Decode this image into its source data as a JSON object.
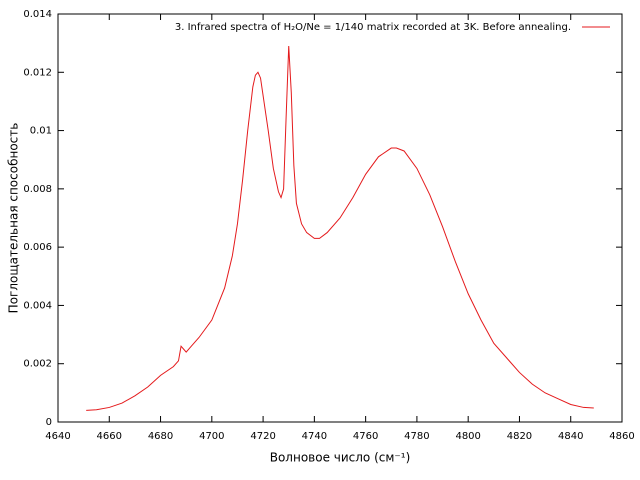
{
  "chart_data": {
    "type": "line",
    "xlabel": "Волновое число (см⁻¹)",
    "ylabel": "Поглощательная способность",
    "x": [
      4651,
      4655,
      4660,
      4665,
      4670,
      4675,
      4680,
      4685,
      4687,
      4688,
      4689,
      4690,
      4692,
      4695,
      4700,
      4705,
      4708,
      4710,
      4712,
      4714,
      4716,
      4717,
      4718,
      4719,
      4720,
      4722,
      4724,
      4726,
      4727,
      4728,
      4729,
      4730,
      4731,
      4732,
      4733,
      4735,
      4737,
      4740,
      4742,
      4745,
      4750,
      4755,
      4760,
      4765,
      4770,
      4772,
      4775,
      4780,
      4785,
      4790,
      4795,
      4800,
      4805,
      4810,
      4815,
      4820,
      4825,
      4830,
      4835,
      4840,
      4845,
      4849
    ],
    "series": [
      {
        "name": "3. Infrared spectra of H₂O/Ne = 1/140 matrix recorded at 3K. Before annealing.",
        "color": "#e41a1c",
        "values": [
          0.0004,
          0.00042,
          0.0005,
          0.00065,
          0.0009,
          0.0012,
          0.0016,
          0.0019,
          0.0021,
          0.0026,
          0.0025,
          0.0024,
          0.0026,
          0.0029,
          0.0035,
          0.0046,
          0.0057,
          0.0068,
          0.0083,
          0.01,
          0.0115,
          0.0119,
          0.012,
          0.0118,
          0.0112,
          0.01,
          0.0087,
          0.0079,
          0.0077,
          0.008,
          0.0105,
          0.0129,
          0.0113,
          0.0088,
          0.0075,
          0.0068,
          0.0065,
          0.0063,
          0.0063,
          0.0065,
          0.007,
          0.0077,
          0.0085,
          0.0091,
          0.0094,
          0.0094,
          0.0093,
          0.0087,
          0.0078,
          0.0067,
          0.0055,
          0.0044,
          0.0035,
          0.0027,
          0.0022,
          0.0017,
          0.0013,
          0.001,
          0.0008,
          0.0006,
          0.0005,
          0.00048
        ]
      }
    ],
    "xlim": [
      4640,
      4860
    ],
    "xticks": [
      4640,
      4660,
      4680,
      4700,
      4720,
      4740,
      4760,
      4780,
      4800,
      4820,
      4840,
      4860
    ],
    "ylim": [
      0,
      0.014
    ],
    "yticks": [
      0,
      0.002,
      0.004,
      0.006,
      0.008,
      0.01,
      0.012,
      0.014
    ],
    "grid": false,
    "legend": "top-right"
  }
}
